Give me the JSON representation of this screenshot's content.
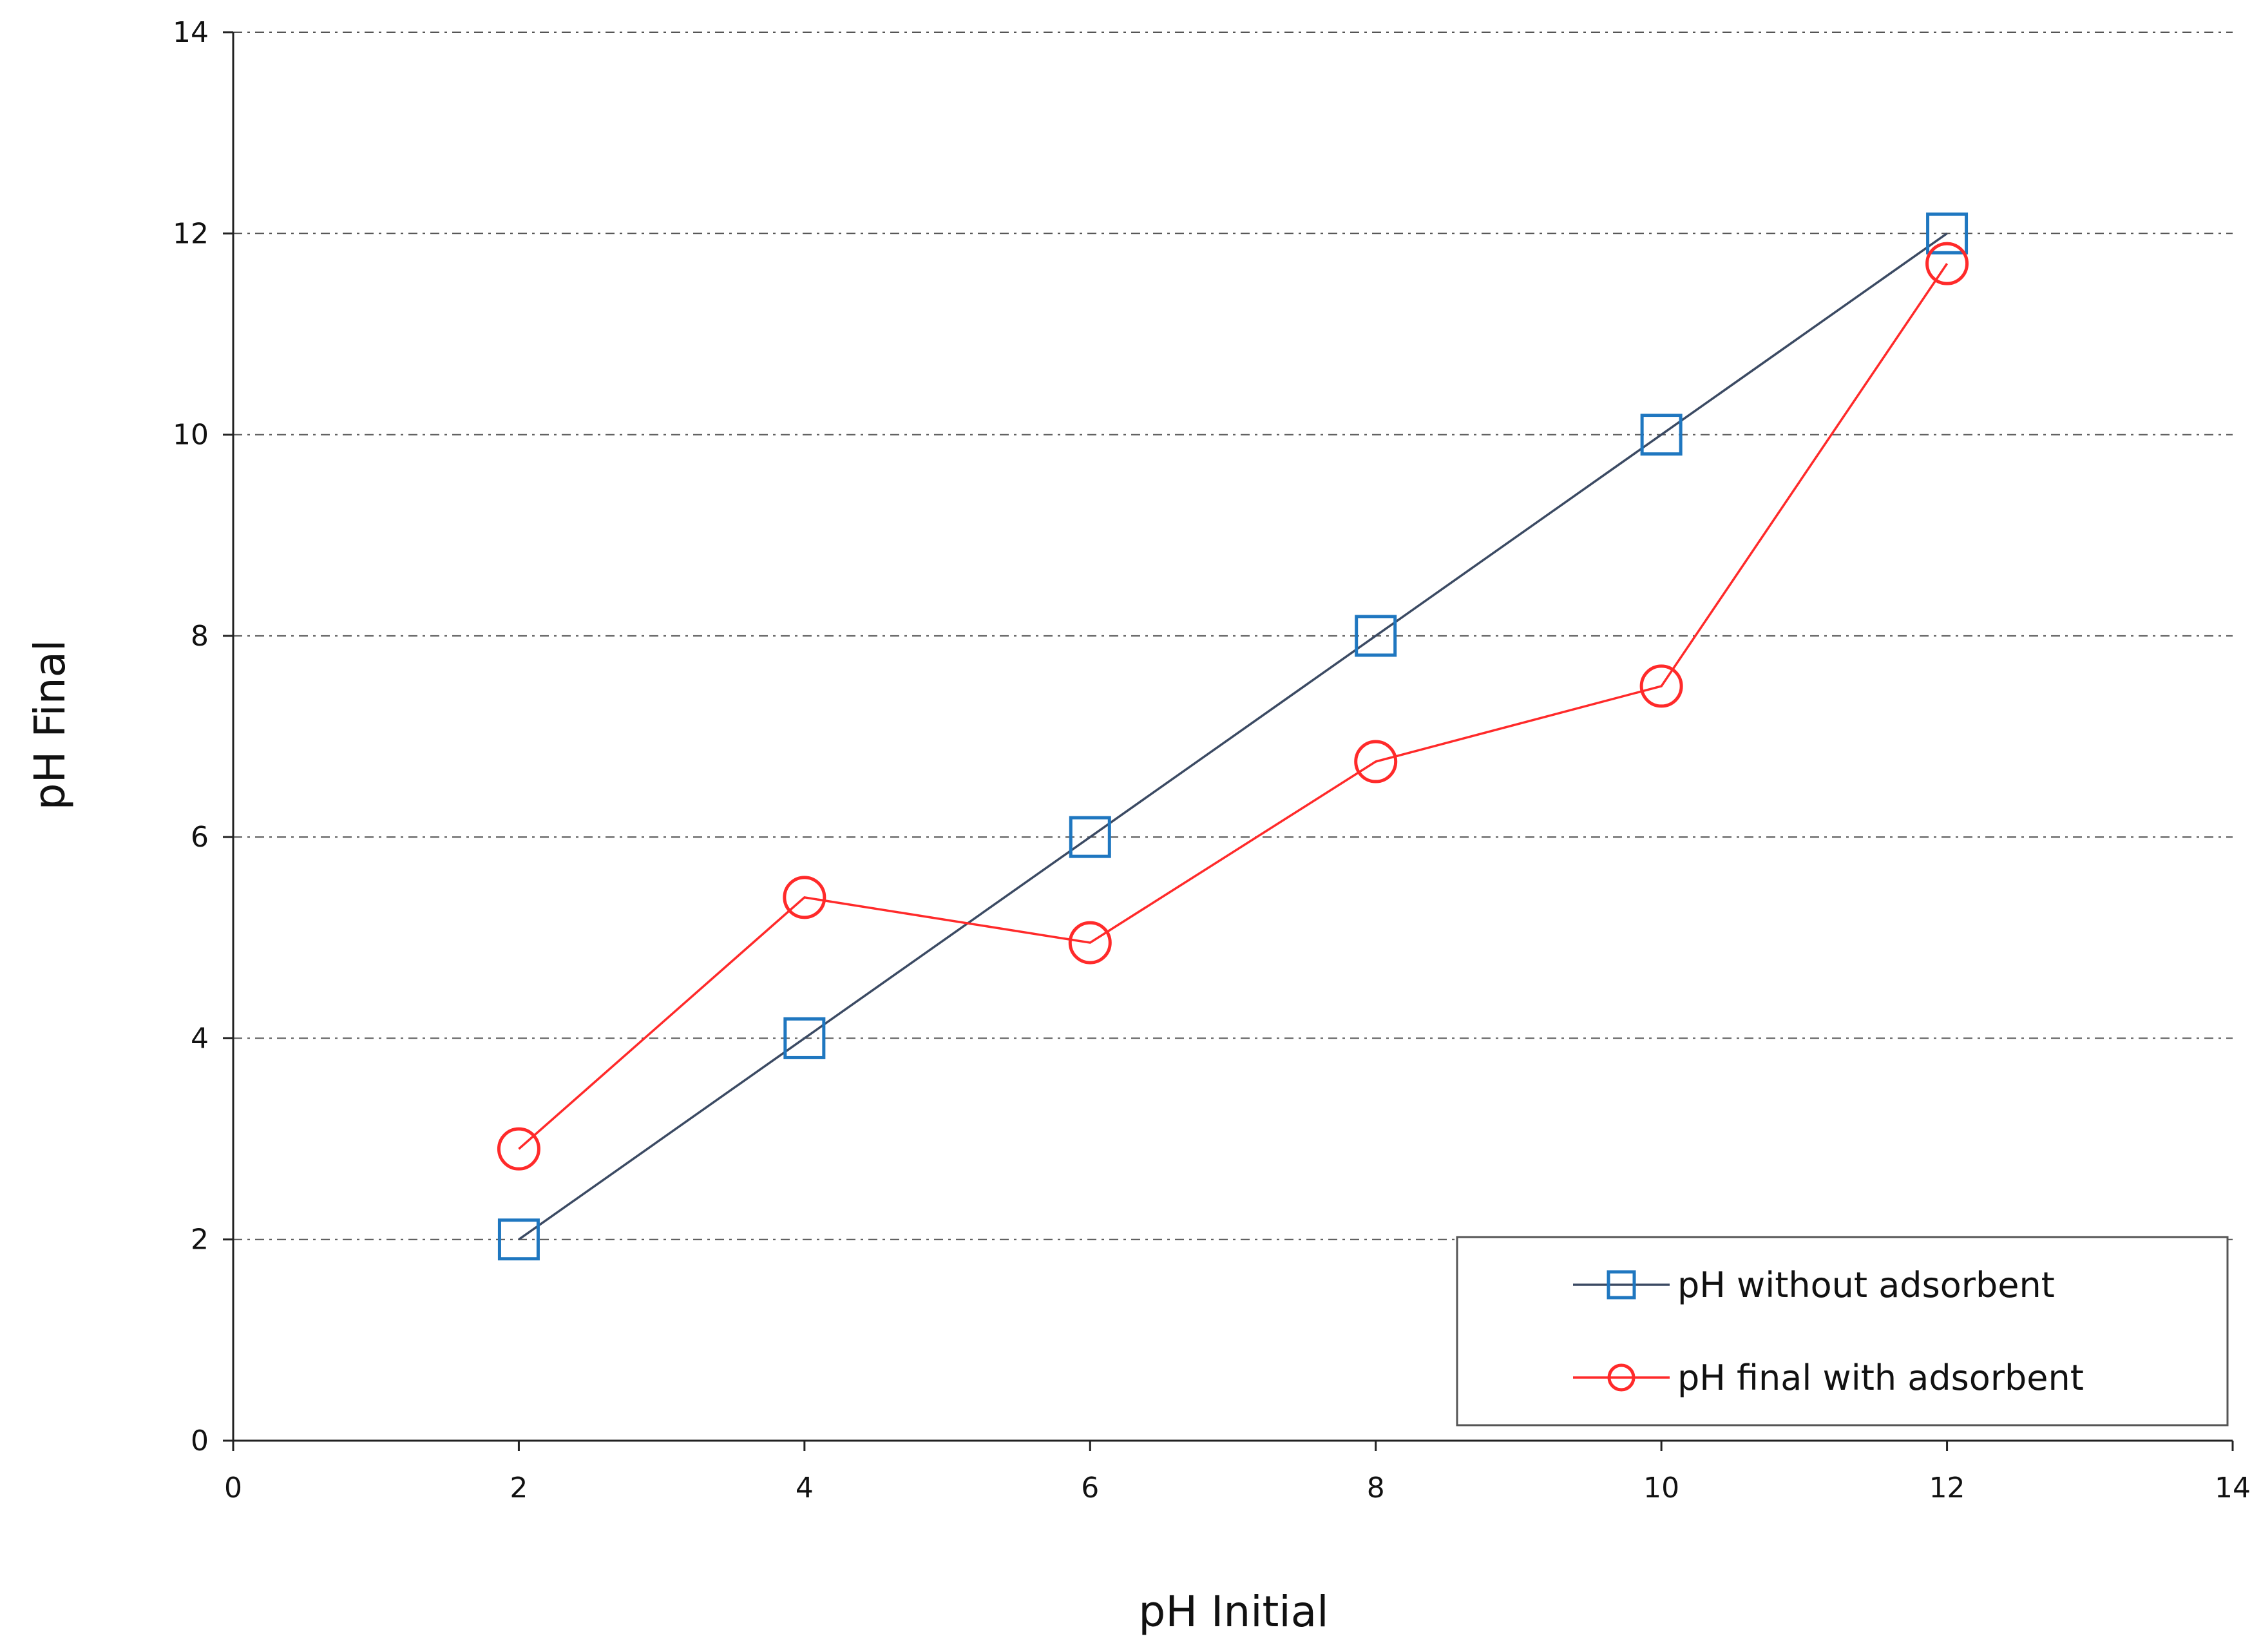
{
  "chart_data": {
    "type": "line",
    "title": "",
    "xlabel": "pH Initial",
    "ylabel": "pH Final",
    "xlim": [
      0,
      14
    ],
    "ylim": [
      0,
      14
    ],
    "xticks": [
      0,
      2,
      4,
      6,
      8,
      10,
      12,
      14
    ],
    "yticks": [
      0,
      2,
      4,
      6,
      8,
      10,
      12,
      14
    ],
    "grid": "horizontal-dashed",
    "legend_position": "bottom-right",
    "series": [
      {
        "name": "pH without adsorbent",
        "marker": "square",
        "line_color": "#3b4a63",
        "marker_color": "#1f77c0",
        "x": [
          2,
          4,
          6,
          8,
          10,
          12
        ],
        "y": [
          2,
          4,
          6,
          8,
          10,
          12
        ]
      },
      {
        "name": "pH final with adsorbent",
        "marker": "circle",
        "line_color": "#ff2a2a",
        "marker_color": "#ff2a2a",
        "x": [
          2,
          4,
          6,
          8,
          10,
          12
        ],
        "y": [
          2.9,
          5.4,
          4.95,
          6.75,
          7.5,
          11.7
        ]
      }
    ]
  }
}
